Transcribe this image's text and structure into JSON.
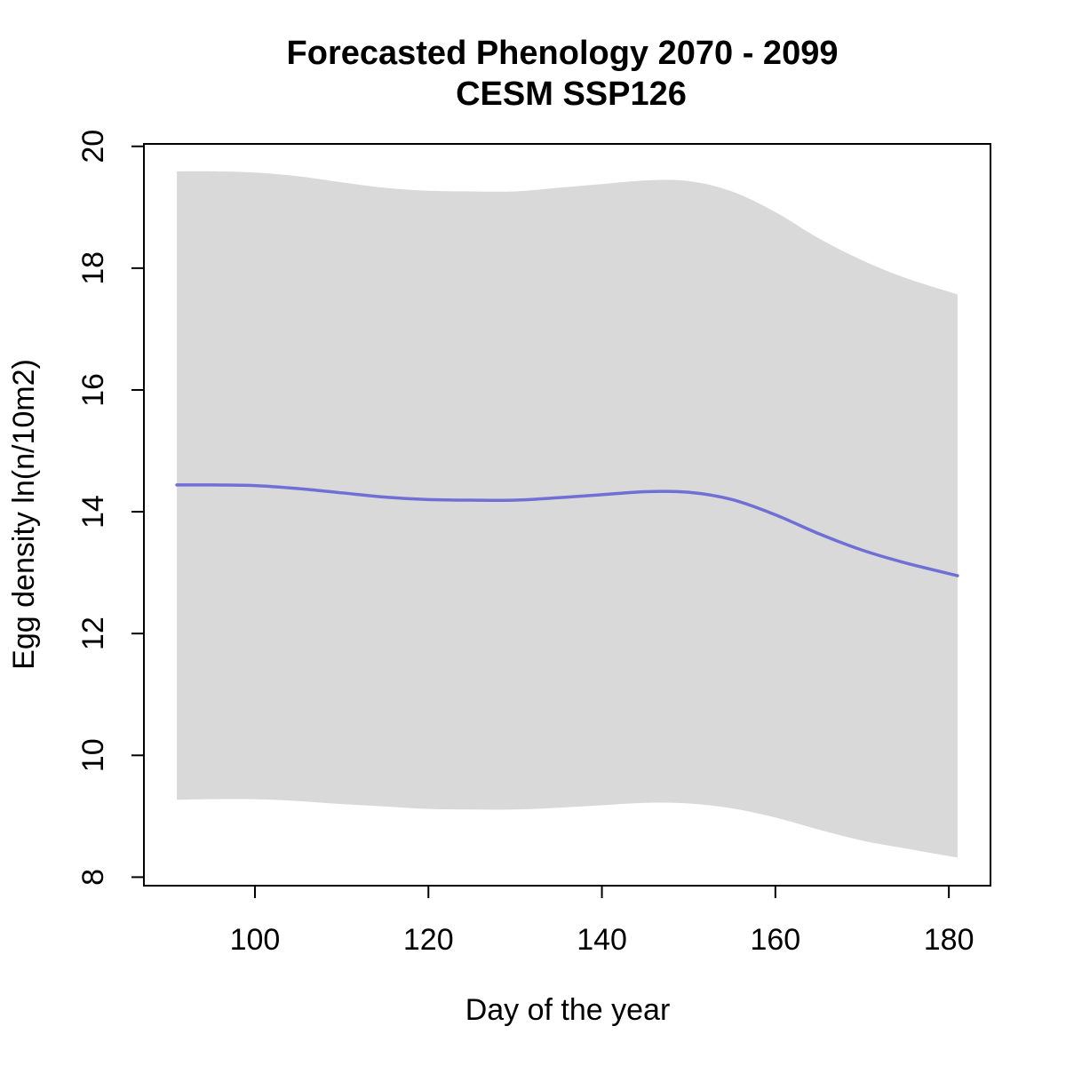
{
  "chart_data": {
    "type": "line",
    "title": "Forecasted Phenology 2070 - 2099",
    "subtitle": "CESM SSP126",
    "xlabel": "Day of the year",
    "ylabel": "Egg density ln(n/10m2)",
    "xlim": [
      87.2,
      184.8
    ],
    "ylim": [
      7.86,
      20.04
    ],
    "x_ticks": [
      100,
      120,
      140,
      160,
      180
    ],
    "y_ticks": [
      8,
      10,
      12,
      14,
      16,
      18,
      20
    ],
    "grid": false,
    "legend": "none",
    "colors": {
      "line": "#6f6fd6",
      "band": "#d9d9d9",
      "axis": "#000000"
    },
    "series": [
      {
        "x": [
          91,
          95,
          100,
          105,
          110,
          115,
          120,
          125,
          130,
          135,
          140,
          145,
          150,
          155,
          160,
          165,
          170,
          175,
          181
        ],
        "fit": [
          14.44,
          14.44,
          14.43,
          14.38,
          14.31,
          14.24,
          14.2,
          14.19,
          14.19,
          14.23,
          14.28,
          14.33,
          14.32,
          14.2,
          13.95,
          13.64,
          13.37,
          13.16,
          12.95
        ],
        "upper": [
          19.59,
          19.59,
          19.57,
          19.51,
          19.41,
          19.32,
          19.27,
          19.26,
          19.26,
          19.32,
          19.38,
          19.44,
          19.43,
          19.26,
          18.92,
          18.49,
          18.13,
          17.84,
          17.57
        ],
        "lower": [
          9.27,
          9.28,
          9.28,
          9.25,
          9.2,
          9.16,
          9.12,
          9.11,
          9.11,
          9.14,
          9.18,
          9.22,
          9.21,
          9.13,
          8.98,
          8.78,
          8.6,
          8.47,
          8.32
        ]
      }
    ]
  }
}
